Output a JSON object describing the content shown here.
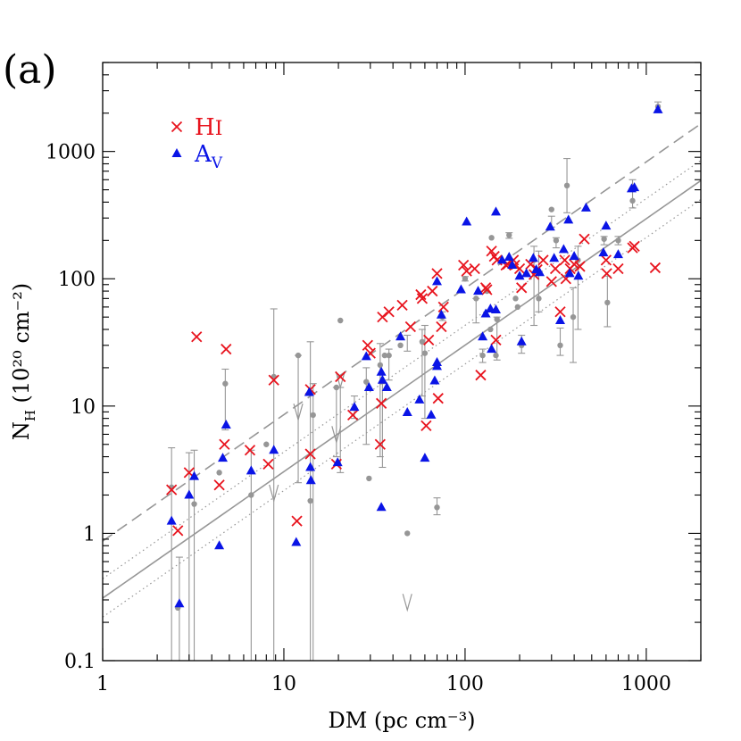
{
  "panel_label": "(a)",
  "chart_data": {
    "type": "scatter",
    "xlabel": "DM (pc cm⁻³)",
    "ylabel_main": "N",
    "ylabel_sub": "H",
    "ylabel_rest": " (10²⁰ cm⁻²)",
    "xscale": "log",
    "yscale": "log",
    "xlim": [
      1,
      2000
    ],
    "ylim": [
      0.1,
      5000
    ],
    "x_tick_labels": [
      "1",
      "10",
      "100",
      "1000"
    ],
    "y_tick_labels": [
      "0.1",
      "1",
      "10",
      "100",
      "1000"
    ],
    "legend_position": "top-left",
    "colors": {
      "hi": "#e8141e",
      "av": "#0a14e6",
      "grey": "#969696"
    },
    "legend": [
      {
        "label_main": "H",
        "label_sub": "I",
        "marker": "x",
        "color": "#e8141e"
      },
      {
        "label_main": "A",
        "label_sub": "V",
        "marker": "triangle",
        "color": "#0a14e6"
      }
    ],
    "fit_lines": [
      {
        "style": "solid",
        "points": [
          [
            1,
            0.31
          ],
          [
            2000,
            590
          ]
        ]
      },
      {
        "style": "dashed",
        "points": [
          [
            1,
            0.87
          ],
          [
            2000,
            1650
          ]
        ]
      },
      {
        "style": "dotted",
        "points": [
          [
            1,
            0.44
          ],
          [
            2000,
            850
          ]
        ]
      },
      {
        "style": "dotted",
        "points": [
          [
            1,
            0.22
          ],
          [
            2000,
            420
          ]
        ]
      }
    ],
    "series": [
      {
        "name": "HI",
        "marker": "x",
        "points": [
          [
            2.4,
            2.2
          ],
          [
            2.6,
            1.05
          ],
          [
            3.0,
            3.0
          ],
          [
            3.3,
            35
          ],
          [
            4.4,
            2.4
          ],
          [
            4.7,
            5.0
          ],
          [
            4.8,
            28
          ],
          [
            6.5,
            4.5
          ],
          [
            8.2,
            3.5
          ],
          [
            8.8,
            16
          ],
          [
            11.8,
            1.25
          ],
          [
            14,
            13.5
          ],
          [
            14,
            4.2
          ],
          [
            19.5,
            3.5
          ],
          [
            20.5,
            17
          ],
          [
            24,
            8.5
          ],
          [
            29,
            30
          ],
          [
            30,
            26
          ],
          [
            34.5,
            10.5
          ],
          [
            34,
            5
          ],
          [
            35,
            50
          ],
          [
            38,
            55
          ],
          [
            45,
            62
          ],
          [
            50,
            42
          ],
          [
            57,
            75
          ],
          [
            58,
            70
          ],
          [
            61,
            7
          ],
          [
            63,
            33
          ],
          [
            66,
            80
          ],
          [
            70,
            110
          ],
          [
            71,
            11.5
          ],
          [
            74,
            42
          ],
          [
            76,
            60
          ],
          [
            98,
            128
          ],
          [
            102,
            115
          ],
          [
            113,
            120
          ],
          [
            122,
            17.5
          ],
          [
            130,
            85
          ],
          [
            132,
            82
          ],
          [
            140,
            165
          ],
          [
            145,
            150
          ],
          [
            148,
            33
          ],
          [
            150,
            140
          ],
          [
            168,
            128
          ],
          [
            172,
            130
          ],
          [
            185,
            140
          ],
          [
            188,
            128
          ],
          [
            200,
            120
          ],
          [
            205,
            85
          ],
          [
            230,
            130
          ],
          [
            240,
            108
          ],
          [
            250,
            118
          ],
          [
            270,
            140
          ],
          [
            300,
            95
          ],
          [
            315,
            120
          ],
          [
            335,
            55
          ],
          [
            355,
            140
          ],
          [
            360,
            100
          ],
          [
            380,
            120
          ],
          [
            400,
            130
          ],
          [
            430,
            125
          ],
          [
            455,
            205
          ],
          [
            600,
            140
          ],
          [
            605,
            110
          ],
          [
            700,
            120
          ],
          [
            840,
            175
          ],
          [
            860,
            180
          ],
          [
            1120,
            122
          ]
        ]
      },
      {
        "name": "AV",
        "marker": "triangle",
        "points": [
          [
            2.4,
            1.25
          ],
          [
            2.65,
            0.28
          ],
          [
            3.0,
            2.0
          ],
          [
            3.2,
            2.8
          ],
          [
            4.4,
            0.8
          ],
          [
            4.6,
            3.9
          ],
          [
            4.8,
            7.1
          ],
          [
            6.6,
            3.1
          ],
          [
            8.8,
            4.5
          ],
          [
            11.7,
            0.85
          ],
          [
            13.8,
            12.8
          ],
          [
            14,
            3.3
          ],
          [
            14.1,
            2.6
          ],
          [
            19.8,
            3.6
          ],
          [
            24.5,
            9.8
          ],
          [
            28.5,
            24.5
          ],
          [
            29.5,
            14
          ],
          [
            34.5,
            18.5
          ],
          [
            35,
            16
          ],
          [
            34.5,
            1.6
          ],
          [
            37,
            14
          ],
          [
            44,
            35
          ],
          [
            48,
            8.9
          ],
          [
            56,
            11.2
          ],
          [
            60,
            3.9
          ],
          [
            65,
            8.5
          ],
          [
            68,
            15.8
          ],
          [
            70,
            22
          ],
          [
            70,
            20.5
          ],
          [
            70,
            95
          ],
          [
            74,
            52
          ],
          [
            95,
            82
          ],
          [
            102,
            280
          ],
          [
            118,
            80
          ],
          [
            125,
            35
          ],
          [
            130,
            53
          ],
          [
            138,
            58
          ],
          [
            140,
            28
          ],
          [
            148,
            57
          ],
          [
            148,
            335
          ],
          [
            160,
            140
          ],
          [
            175,
            148
          ],
          [
            182,
            128
          ],
          [
            200,
            105
          ],
          [
            205,
            32
          ],
          [
            218,
            110
          ],
          [
            238,
            145
          ],
          [
            247,
            118
          ],
          [
            258,
            112
          ],
          [
            295,
            255
          ],
          [
            310,
            145
          ],
          [
            335,
            47
          ],
          [
            350,
            170
          ],
          [
            372,
            290
          ],
          [
            378,
            110
          ],
          [
            400,
            150
          ],
          [
            422,
            105
          ],
          [
            465,
            360
          ],
          [
            580,
            160
          ],
          [
            600,
            260
          ],
          [
            700,
            155
          ],
          [
            830,
            510
          ],
          [
            860,
            520
          ],
          [
            1160,
            2130
          ]
        ]
      },
      {
        "name": "grey",
        "marker": "dot",
        "points": [
          [
            2.4,
            2.3
          ],
          [
            2.6,
            0.26
          ],
          [
            3.2,
            1.7
          ],
          [
            4.4,
            3.0
          ],
          [
            4.75,
            15
          ],
          [
            6.6,
            2.0
          ],
          [
            8.0,
            5.0
          ],
          [
            8.8,
            17
          ],
          [
            12,
            25
          ],
          [
            14,
            1.8
          ],
          [
            14.5,
            8.5
          ],
          [
            19.5,
            14
          ],
          [
            20.5,
            47
          ],
          [
            28.5,
            15.5
          ],
          [
            29.5,
            2.7
          ],
          [
            34,
            21
          ],
          [
            36,
            25
          ],
          [
            38,
            25
          ],
          [
            44,
            30
          ],
          [
            48,
            1.0
          ],
          [
            58,
            32
          ],
          [
            60,
            26
          ],
          [
            70,
            1.6
          ],
          [
            75,
            50
          ],
          [
            100,
            100
          ],
          [
            115,
            70
          ],
          [
            125,
            25
          ],
          [
            132,
            80
          ],
          [
            138,
            40
          ],
          [
            140,
            210
          ],
          [
            148,
            25
          ],
          [
            150,
            48
          ],
          [
            175,
            220
          ],
          [
            190,
            70
          ],
          [
            195,
            60
          ],
          [
            205,
            30
          ],
          [
            240,
            140
          ],
          [
            255,
            70
          ],
          [
            300,
            350
          ],
          [
            318,
            200
          ],
          [
            335,
            30
          ],
          [
            365,
            540
          ],
          [
            395,
            50
          ],
          [
            420,
            140
          ],
          [
            585,
            205
          ],
          [
            610,
            65
          ],
          [
            700,
            200
          ],
          [
            840,
            410
          ],
          [
            1160,
            2250
          ]
        ]
      }
    ],
    "error_bars": [
      [
        2.4,
        0.04,
        4.7
      ],
      [
        2.65,
        0.04,
        0.65
      ],
      [
        3.0,
        0.04,
        4.3
      ],
      [
        3.2,
        0.04,
        4.5
      ],
      [
        4.75,
        6.5,
        19.5
      ],
      [
        6.6,
        0.04,
        4.5
      ],
      [
        8.8,
        0.04,
        58
      ],
      [
        12,
        2.5,
        25
      ],
      [
        14,
        0.04,
        32
      ],
      [
        14.5,
        0.04,
        15
      ],
      [
        19.5,
        4,
        14
      ],
      [
        20.5,
        3,
        14
      ],
      [
        24.5,
        8,
        12
      ],
      [
        28.5,
        5,
        20
      ],
      [
        34,
        4,
        31
      ],
      [
        35,
        3.3,
        15
      ],
      [
        38,
        16,
        28
      ],
      [
        48,
        27,
        36
      ],
      [
        58,
        12,
        40
      ],
      [
        60,
        8,
        43
      ],
      [
        70,
        1.4,
        1.9
      ],
      [
        75,
        47,
        55
      ],
      [
        100,
        96,
        104
      ],
      [
        115,
        45,
        70
      ],
      [
        125,
        22,
        28
      ],
      [
        150,
        23,
        50
      ],
      [
        175,
        208,
        230
      ],
      [
        205,
        26,
        36
      ],
      [
        240,
        43,
        180
      ],
      [
        255,
        55,
        165
      ],
      [
        300,
        255,
        310
      ],
      [
        318,
        175,
        210
      ],
      [
        335,
        25,
        41
      ],
      [
        365,
        330,
        880
      ],
      [
        395,
        22,
        85
      ],
      [
        420,
        40,
        180
      ],
      [
        585,
        185,
        215
      ],
      [
        610,
        42,
        105
      ],
      [
        700,
        185,
        215
      ],
      [
        840,
        360,
        600
      ],
      [
        1160,
        2050,
        2450
      ]
    ],
    "upper_limits": [
      [
        8.8,
        1.8
      ],
      [
        12,
        7.8
      ],
      [
        19.5,
        5.2
      ],
      [
        20.5,
        14
      ],
      [
        48,
        0.25
      ]
    ]
  }
}
